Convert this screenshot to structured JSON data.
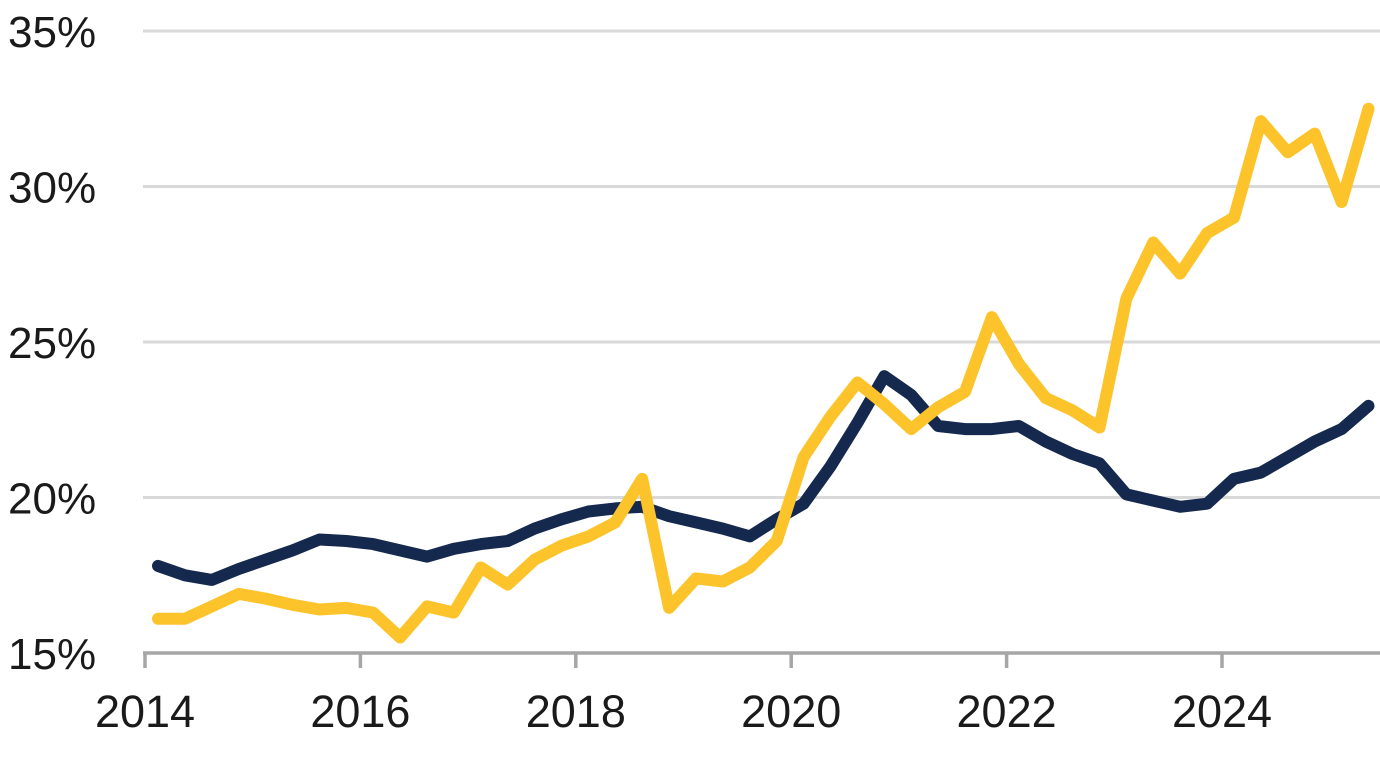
{
  "chart_data": {
    "type": "line",
    "title": "",
    "xlabel": "",
    "ylabel": "",
    "grid": true,
    "legend": "none",
    "ylim": [
      15,
      35
    ],
    "background_color": "#FFFFFF",
    "gridline_color": "#D9D9D9",
    "axis_color": "#A6A6A6",
    "label_color": "#1A1A1A",
    "y_ticks": [
      {
        "label": "15%",
        "value": 15
      },
      {
        "label": "20%",
        "value": 20
      },
      {
        "label": "25%",
        "value": 25
      },
      {
        "label": "30%",
        "value": 30
      },
      {
        "label": "35%",
        "value": 35
      }
    ],
    "x_ticks": [
      {
        "label": "2014",
        "year": 2014
      },
      {
        "label": "2016",
        "year": 2016
      },
      {
        "label": "2018",
        "year": 2018
      },
      {
        "label": "2020",
        "year": 2020
      },
      {
        "label": "2022",
        "year": 2022
      },
      {
        "label": "2024",
        "year": 2024
      }
    ],
    "x": [
      "2014Q1",
      "2014Q2",
      "2014Q3",
      "2014Q4",
      "2015Q1",
      "2015Q2",
      "2015Q3",
      "2015Q4",
      "2016Q1",
      "2016Q2",
      "2016Q3",
      "2016Q4",
      "2017Q1",
      "2017Q2",
      "2017Q3",
      "2017Q4",
      "2018Q1",
      "2018Q2",
      "2018Q3",
      "2018Q4",
      "2019Q1",
      "2019Q2",
      "2019Q3",
      "2019Q4",
      "2020Q1",
      "2020Q2",
      "2020Q3",
      "2020Q4",
      "2021Q1",
      "2021Q2",
      "2021Q3",
      "2021Q4",
      "2022Q1",
      "2022Q2",
      "2022Q3",
      "2022Q4",
      "2023Q1",
      "2023Q2",
      "2023Q3",
      "2023Q4",
      "2024Q1",
      "2024Q2",
      "2024Q3",
      "2024Q4",
      "2025Q1",
      "2025Q2"
    ],
    "series": [
      {
        "name": "navy-series",
        "color": "#15294E",
        "values": [
          17.8,
          17.5,
          17.35,
          17.7,
          18.0,
          18.3,
          18.65,
          18.6,
          18.5,
          18.3,
          18.1,
          18.35,
          18.5,
          18.6,
          19.0,
          19.3,
          19.55,
          19.65,
          19.7,
          19.4,
          19.2,
          19.0,
          18.75,
          19.3,
          19.8,
          21.0,
          22.4,
          23.9,
          23.3,
          22.3,
          22.2,
          22.2,
          22.3,
          21.8,
          21.4,
          21.1,
          20.1,
          19.9,
          19.7,
          19.8,
          20.6,
          20.8,
          21.3,
          21.8,
          22.2,
          22.95
        ]
      },
      {
        "name": "gold-series",
        "color": "#FDC32A",
        "values": [
          16.1,
          16.1,
          16.5,
          16.9,
          16.75,
          16.55,
          16.4,
          16.45,
          16.3,
          15.5,
          16.5,
          16.3,
          17.75,
          17.2,
          18.0,
          18.45,
          18.75,
          19.2,
          20.6,
          16.45,
          17.4,
          17.3,
          17.75,
          18.6,
          21.3,
          22.6,
          23.7,
          23.0,
          22.2,
          22.9,
          23.4,
          25.8,
          24.3,
          23.2,
          22.8,
          22.25,
          26.4,
          28.2,
          27.2,
          28.5,
          29.0,
          32.1,
          31.1,
          31.7,
          29.5,
          32.5
        ]
      }
    ]
  }
}
